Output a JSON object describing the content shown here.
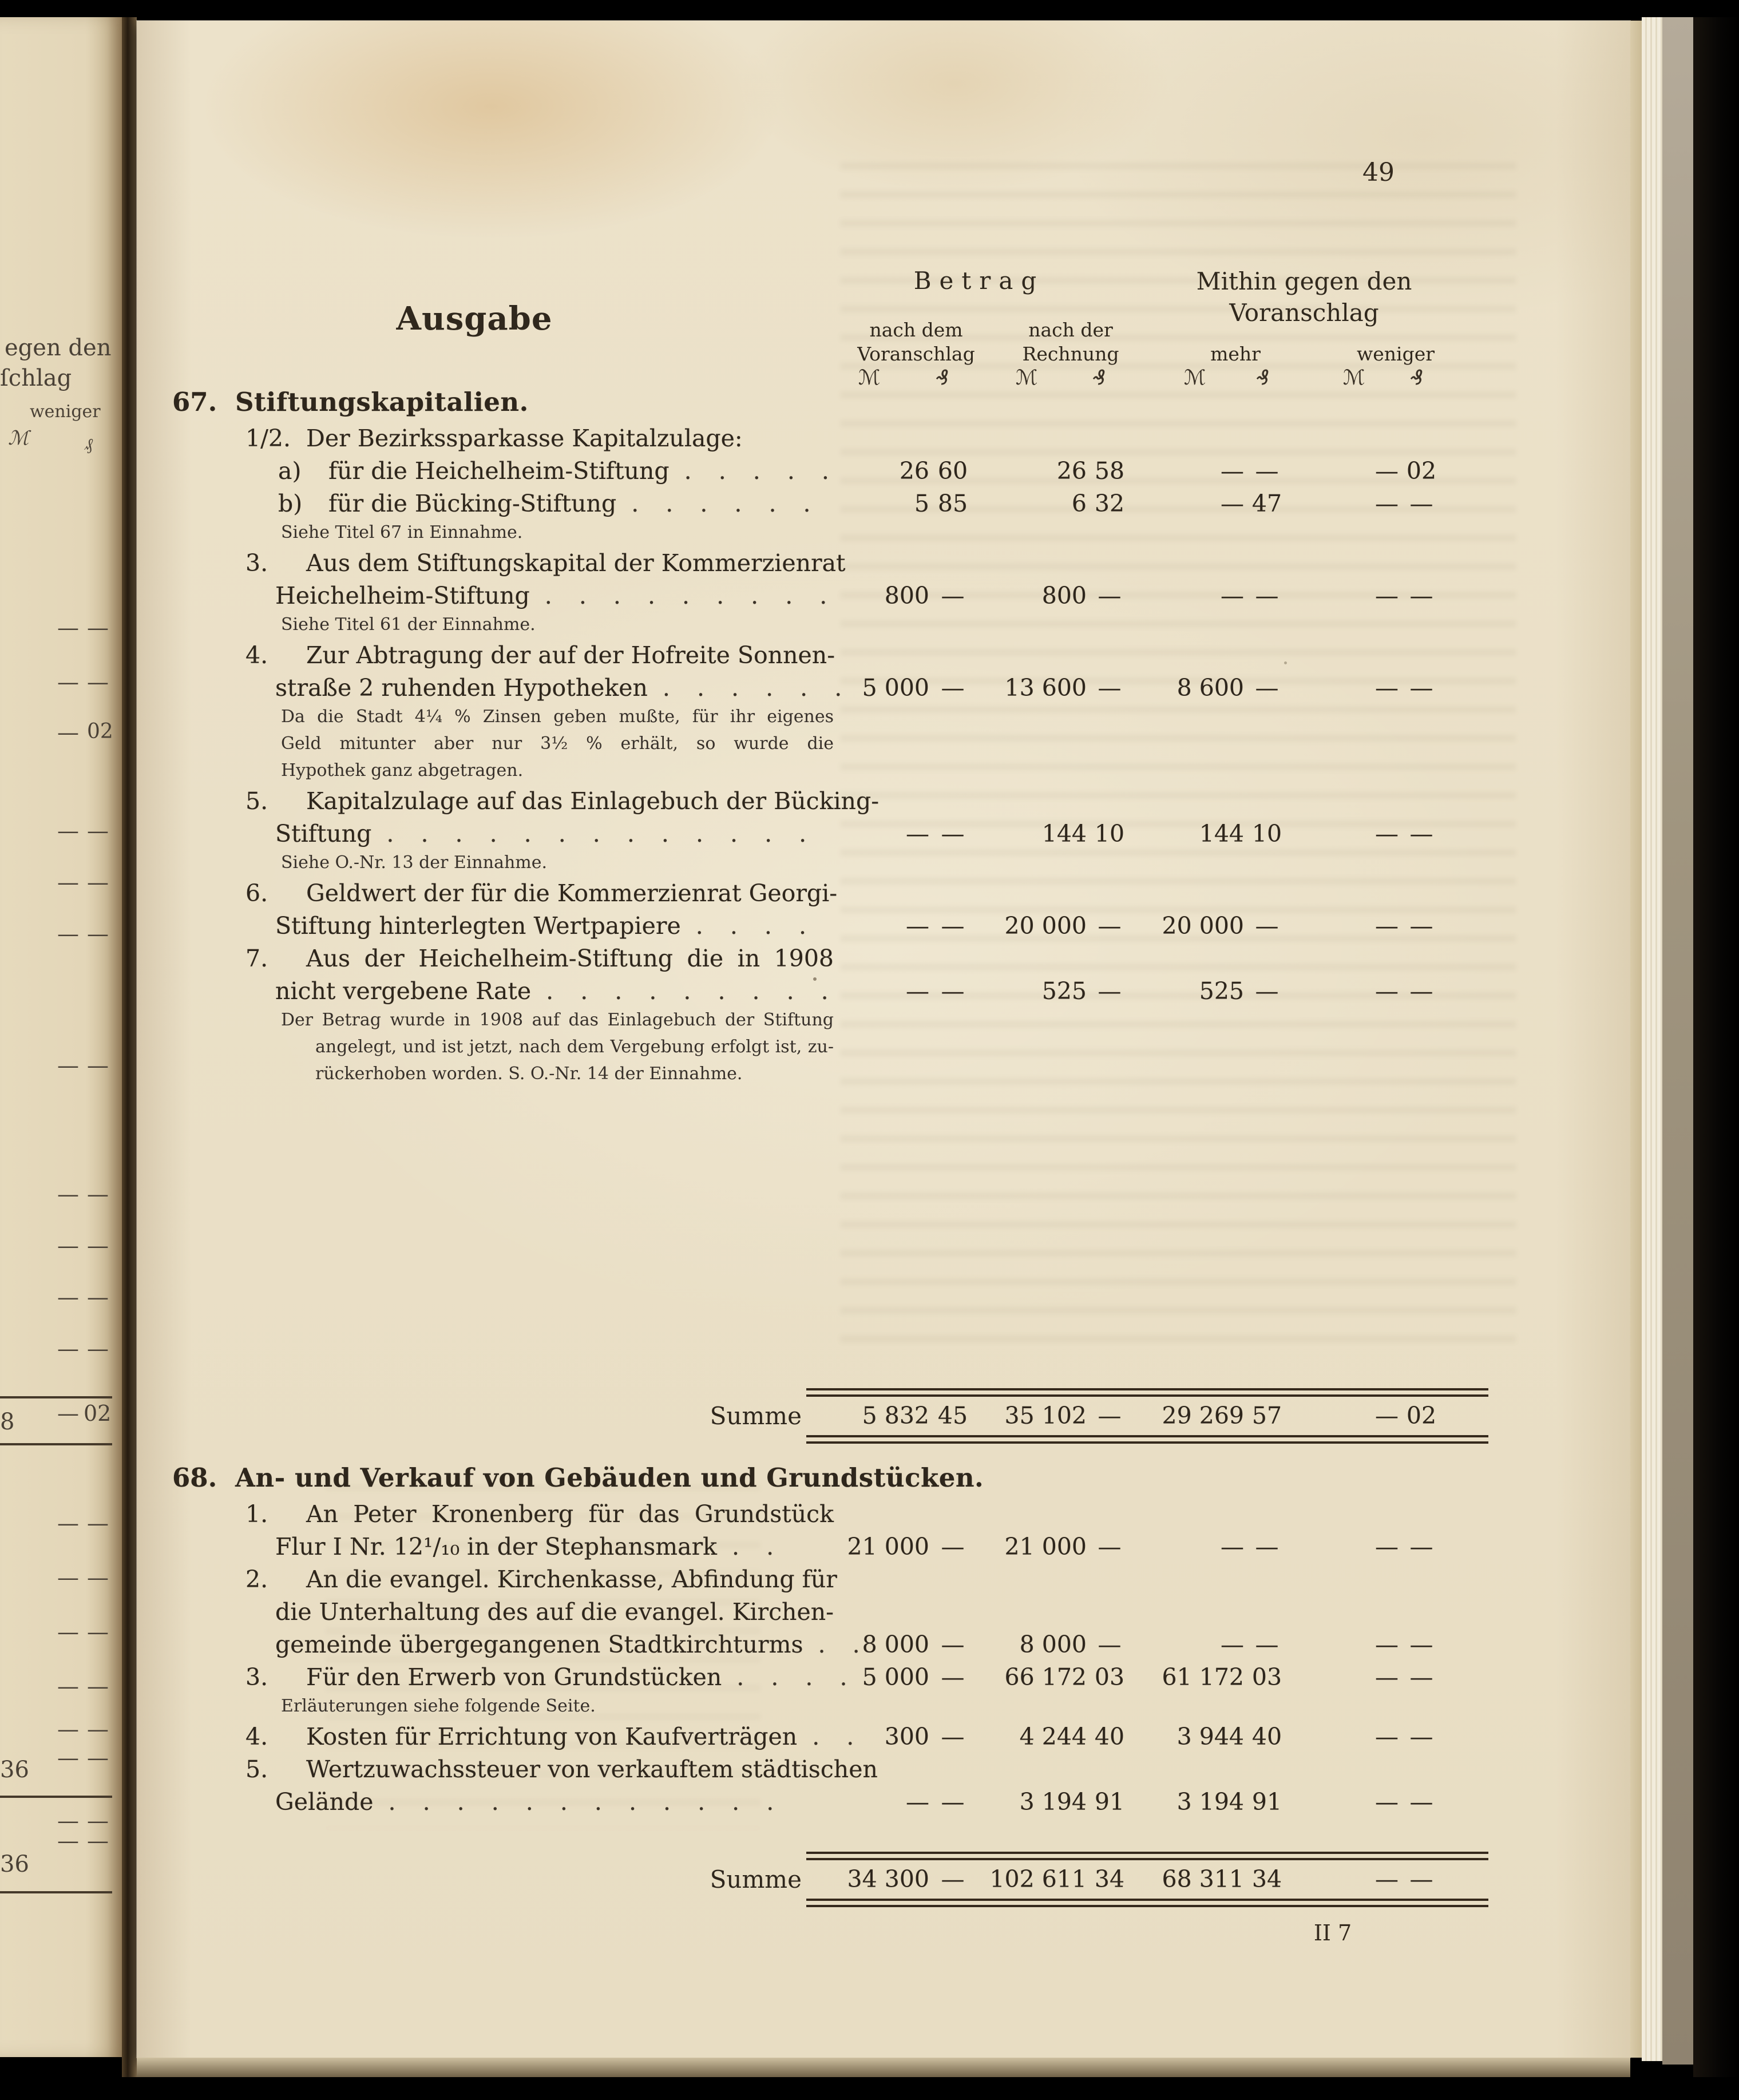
{
  "page": {
    "number": "49",
    "signature": "II 7"
  },
  "table_header": {
    "ausgabe": "Ausgabe",
    "betrag": "Betrag",
    "nach_dem": "nach dem",
    "voranschlag": "Voranschlag",
    "nach_der": "nach der",
    "rechnung": "Rechnung",
    "mithin_line1": "Mithin gegen den",
    "mithin_line2": "Voranschlag",
    "mehr": "mehr",
    "weniger": "weniger",
    "mark": "ℳ",
    "pfennig": "₰"
  },
  "sections": [
    {
      "number": "67.",
      "title": "Stiftungskapitalien.",
      "rows": [
        {
          "style": "item",
          "num": "1/2.",
          "text": "Der Bezirkssparkasse Kapitalzulage:"
        },
        {
          "style": "sub",
          "num": "a)",
          "text": "für die Heichelheim-Stiftung",
          "dots": ". . . . .",
          "values": [
            "26",
            "60",
            "26",
            "58",
            "—",
            "—",
            "—",
            "02"
          ]
        },
        {
          "style": "sub",
          "num": "b)",
          "text": "für die Bücking-Stiftung",
          "dots": ". . . . . .",
          "values": [
            "5",
            "85",
            "6",
            "32",
            "—",
            "47",
            "—",
            "—"
          ]
        },
        {
          "style": "fine",
          "text": "Siehe Titel 67 in Einnahme."
        },
        {
          "style": "item",
          "fill": true,
          "num": "3.",
          "text": "Aus dem Stiftungskapital der Kommerzienrat"
        },
        {
          "style": "cont",
          "text": "Heichelheim-Stiftung",
          "dots": ". . . . . . . . .",
          "values": [
            "800",
            "—",
            "800",
            "—",
            "—",
            "—",
            "—",
            "—"
          ]
        },
        {
          "style": "fine",
          "text": "Siehe Titel 61 der Einnahme."
        },
        {
          "style": "item",
          "fill": true,
          "num": "4.",
          "text": "Zur Abtragung der auf der Hofreite Sonnen-"
        },
        {
          "style": "cont",
          "text": "straße 2 ruhenden Hypotheken",
          "dots": ". . . . . .",
          "values": [
            "5 000",
            "—",
            "13 600",
            "—",
            "8 600",
            "—",
            "—",
            "—"
          ]
        },
        {
          "style": "fine",
          "fill": true,
          "text": "Da die Stadt 4¼ % Zinsen geben mußte, für ihr eigenes"
        },
        {
          "style": "fine",
          "fill": true,
          "text": "Geld mitunter aber nur 3½ % erhält, so wurde die"
        },
        {
          "style": "fine",
          "text": "Hypothek ganz abgetragen."
        },
        {
          "style": "item",
          "fill": true,
          "num": "5.",
          "text": "Kapitalzulage auf das Einlagebuch der Bücking-"
        },
        {
          "style": "cont",
          "text": "Stiftung",
          "dots": ". . . . . . . . . . . . .",
          "values": [
            "—",
            "—",
            "144",
            "10",
            "144",
            "10",
            "—",
            "—"
          ]
        },
        {
          "style": "fine",
          "text": "Siehe O.-Nr. 13 der Einnahme."
        },
        {
          "style": "item",
          "fill": true,
          "num": "6.",
          "text": "Geldwert der für die Kommerzienrat Georgi-"
        },
        {
          "style": "cont",
          "text": "Stiftung hinterlegten Wertpapiere",
          "dots": ". . . .",
          "values": [
            "—",
            "—",
            "20 000",
            "—",
            "20 000",
            "—",
            "—",
            "—"
          ]
        },
        {
          "style": "item",
          "fill": true,
          "num": "7.",
          "text": "Aus der Heichelheim-Stiftung die in 1908"
        },
        {
          "style": "cont",
          "text": "nicht vergebene Rate",
          "dots": ". . . . . . . . .",
          "values": [
            "—",
            "—",
            "525",
            "—",
            "525",
            "—",
            "—",
            "—"
          ]
        },
        {
          "style": "fine",
          "fill": true,
          "text": "Der Betrag wurde in 1908 auf das Einlagebuch der Stiftung"
        },
        {
          "style": "fine2",
          "fill": true,
          "text": "angelegt, und ist jetzt, nach dem Vergebung erfolgt ist, zu-"
        },
        {
          "style": "fine2",
          "text": "rückerhoben worden. S. O.-Nr. 14 der Einnahme."
        }
      ],
      "summe": {
        "label": "Summe",
        "values": [
          "5 832",
          "45",
          "35 102",
          "—",
          "29 269",
          "57",
          "—",
          "02"
        ]
      }
    },
    {
      "number": "68.",
      "title": "An- und Verkauf von Gebäuden und Grundstücken.",
      "rows": [
        {
          "style": "item",
          "fill": true,
          "num": "1.",
          "text": "An Peter Kronenberg für das Grundstück"
        },
        {
          "style": "cont",
          "text": "Flur I Nr. 12¹/₁₀ in der Stephansmark",
          "dots": ". .",
          "values": [
            "21 000",
            "—",
            "21 000",
            "—",
            "—",
            "—",
            "—",
            "—"
          ]
        },
        {
          "style": "item",
          "fill": true,
          "num": "2.",
          "text": "An die evangel. Kirchenkasse, Abfindung für"
        },
        {
          "style": "cont",
          "fill": true,
          "text": "die Unterhaltung des auf die evangel. Kirchen-"
        },
        {
          "style": "cont",
          "text": "gemeinde übergegangenen Stadtkirchturms",
          "dots": ". .",
          "values": [
            "8 000",
            "—",
            "8 000",
            "—",
            "—",
            "—",
            "—",
            "—"
          ]
        },
        {
          "style": "item",
          "num": "3.",
          "text": "Für den Erwerb von Grundstücken",
          "dots": ". . . .",
          "values": [
            "5 000",
            "—",
            "66 172",
            "03",
            "61 172",
            "03",
            "—",
            "—"
          ]
        },
        {
          "style": "fine",
          "text": "Erläuterungen siehe folgende Seite."
        },
        {
          "style": "item",
          "num": "4.",
          "text": "Kosten für Errichtung von Kaufverträgen",
          "dots": ". .",
          "values": [
            "300",
            "—",
            "4 244",
            "40",
            "3 944",
            "40",
            "—",
            "—"
          ]
        },
        {
          "style": "item",
          "fill": true,
          "num": "5.",
          "text": "Wertzuwachssteuer von verkauftem städtischen"
        },
        {
          "style": "cont",
          "text": "Gelände",
          "dots": ". . . . . . . . . . . .",
          "values": [
            "—",
            "—",
            "3 194",
            "91",
            "3 194",
            "91",
            "—",
            "—"
          ]
        }
      ],
      "summe": {
        "label": "Summe",
        "values": [
          "34 300",
          "—",
          "102 611",
          "34",
          "68 311",
          "34",
          "—",
          "—"
        ]
      }
    }
  ],
  "left_page": {
    "header_frag1": "egen den",
    "header_frag2": "ſchlag",
    "weniger": "weniger",
    "mark": "ℳ",
    "pfennig": "₰",
    "dash": "—",
    "num_02": "02",
    "num_8": "8",
    "num_36": "36"
  },
  "colors": {
    "paper": "#ece2ca",
    "ink": "#2e261c",
    "background": "#050403"
  }
}
